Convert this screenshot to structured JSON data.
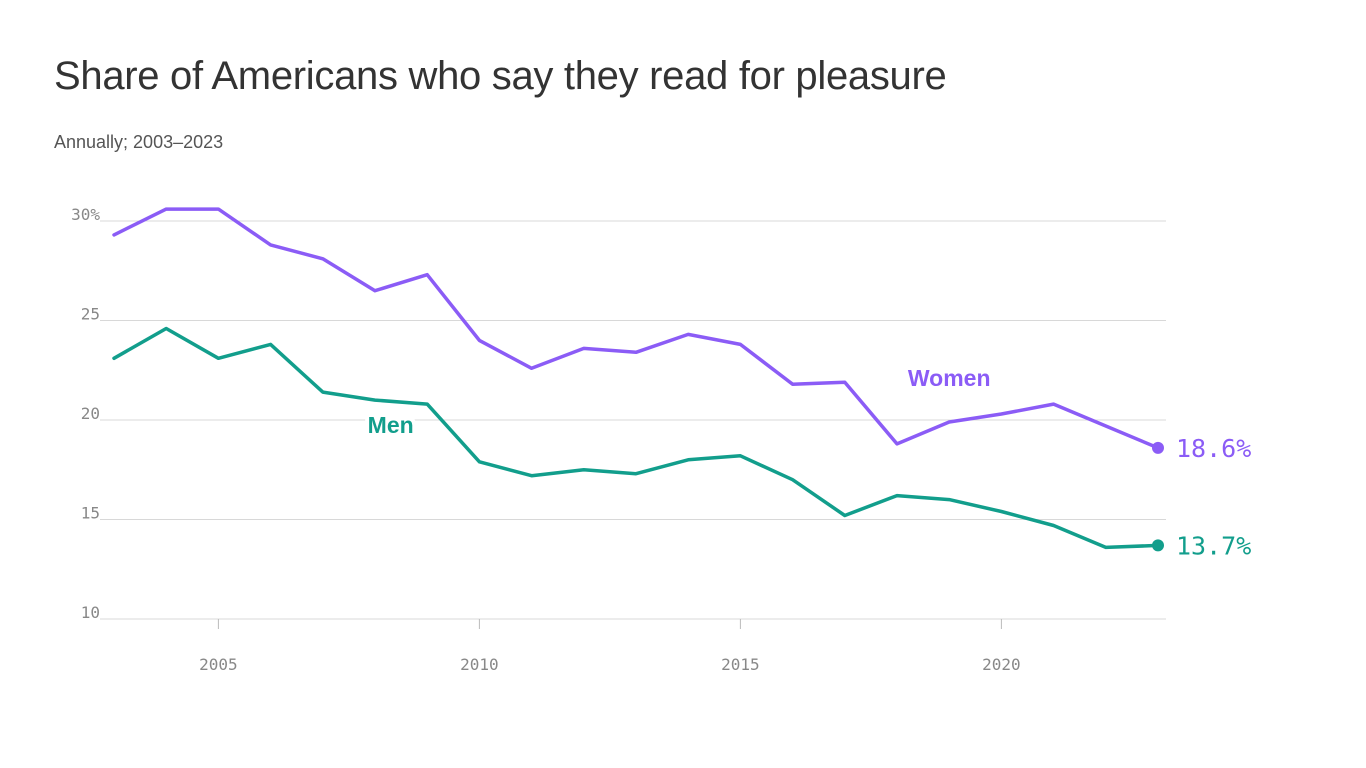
{
  "chart_data": {
    "type": "line",
    "title": "Share of Americans who say they read for pleasure",
    "subtitle": "Annually; 2003–2023",
    "xlabel": "",
    "ylabel": "",
    "x": [
      2003,
      2004,
      2005,
      2006,
      2007,
      2008,
      2009,
      2010,
      2011,
      2012,
      2013,
      2014,
      2015,
      2016,
      2017,
      2018,
      2019,
      2020,
      2021,
      2022,
      2023
    ],
    "xlim": [
      2003,
      2023
    ],
    "ylim": [
      10,
      30
    ],
    "x_ticks": [
      {
        "value": 2005,
        "label": "2005"
      },
      {
        "value": 2010,
        "label": "2010"
      },
      {
        "value": 2015,
        "label": "2015"
      },
      {
        "value": 2020,
        "label": "2020"
      }
    ],
    "y_ticks": [
      {
        "value": 30,
        "label": "30%"
      },
      {
        "value": 25,
        "label": "25"
      },
      {
        "value": 20,
        "label": "20"
      },
      {
        "value": 15,
        "label": "15"
      },
      {
        "value": 10,
        "label": "10"
      }
    ],
    "grid": "horizontal",
    "series": [
      {
        "name": "Women",
        "color": "#8b5cf6",
        "values": [
          29.3,
          30.6,
          30.6,
          28.8,
          28.1,
          26.5,
          27.3,
          24.0,
          22.6,
          23.6,
          23.4,
          24.3,
          23.8,
          21.8,
          21.9,
          18.8,
          19.9,
          20.3,
          20.8,
          19.7,
          18.6
        ],
        "end_label": "18.6%",
        "label_anchor_year": 2019
      },
      {
        "name": "Men",
        "color": "#129e8c",
        "values": [
          23.1,
          24.6,
          23.1,
          23.8,
          21.4,
          21.0,
          20.8,
          17.9,
          17.2,
          17.5,
          17.3,
          18.0,
          18.2,
          17.0,
          15.2,
          16.2,
          16.0,
          15.4,
          14.7,
          13.6,
          13.7
        ],
        "end_label": "13.7%",
        "label_anchor_year": 2008.3
      }
    ]
  }
}
